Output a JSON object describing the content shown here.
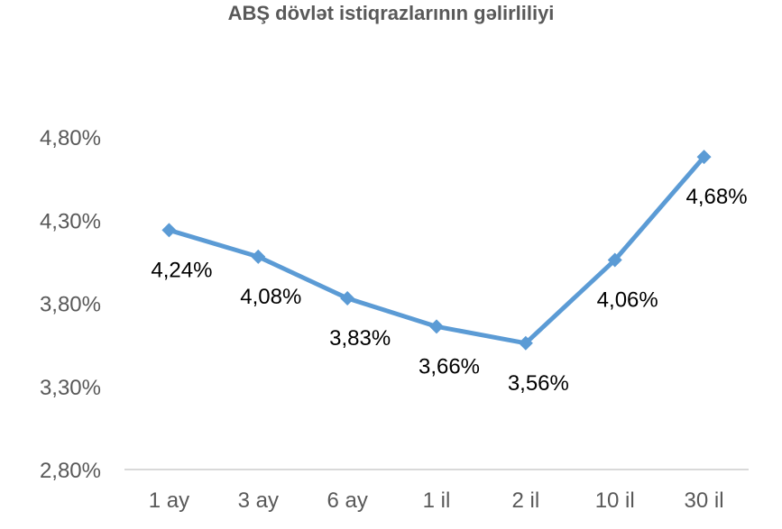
{
  "chart_data": {
    "type": "line",
    "title": "ABŞ dövlət istiqrazlarının gəlirliliyi",
    "xlabel": "",
    "ylabel": "",
    "categories": [
      "1 ay",
      "3 ay",
      "6 ay",
      "1 il",
      "2 il",
      "10 il",
      "30 il"
    ],
    "series": [
      {
        "values": [
          4.24,
          4.08,
          3.83,
          3.66,
          3.56,
          4.06,
          4.68
        ],
        "data_labels": [
          "4,24%",
          "4,08%",
          "3,83%",
          "3,66%",
          "3,56%",
          "4,06%",
          "4,68%"
        ],
        "color": "#5B9BD5",
        "marker": "diamond"
      }
    ],
    "ylim": [
      2.8,
      4.8
    ],
    "yticks": [
      2.8,
      3.3,
      3.8,
      4.3,
      4.8
    ],
    "ytick_labels": [
      "2,80%",
      "3,30%",
      "3,80%",
      "4,30%",
      "4,80%"
    ],
    "grid": false,
    "legend": "none",
    "axis_color": "#d9d9d9"
  }
}
